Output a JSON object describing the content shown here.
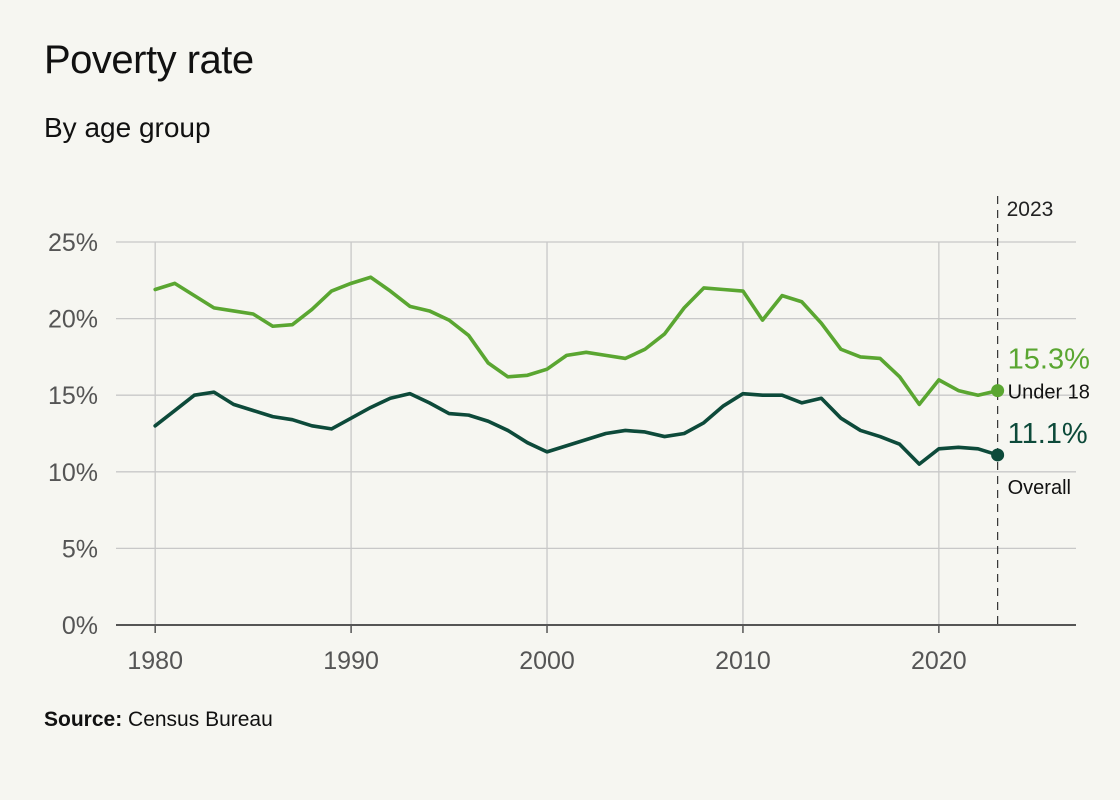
{
  "header": {
    "title": "Poverty rate",
    "subtitle": "By age group"
  },
  "footer": {
    "source_label": "Source:",
    "source_text": "Census Bureau"
  },
  "colors": {
    "background": "#f6f6f1",
    "under18": "#5aa631",
    "overall": "#0d4a3a",
    "grid": "#c8c8c8",
    "axis": "#555555",
    "tick_text": "#555555"
  },
  "chart_data": {
    "type": "line",
    "title": "Poverty rate",
    "subtitle": "By age group",
    "xlim": [
      1978,
      2027
    ],
    "ylim": [
      0,
      25
    ],
    "x_ticks": [
      1980,
      1990,
      2000,
      2010,
      2020
    ],
    "x_tick_labels": [
      "1980",
      "1990",
      "2000",
      "2010",
      "2020"
    ],
    "y_ticks": [
      0,
      5,
      10,
      15,
      20,
      25
    ],
    "y_tick_labels": [
      "0%",
      "5%",
      "10%",
      "15%",
      "20%",
      "25%"
    ],
    "grid": true,
    "reference_line": {
      "x": 2023,
      "label": "2023"
    },
    "x": [
      1980,
      1981,
      1982,
      1983,
      1984,
      1985,
      1986,
      1987,
      1988,
      1989,
      1990,
      1991,
      1992,
      1993,
      1994,
      1995,
      1996,
      1997,
      1998,
      1999,
      2000,
      2001,
      2002,
      2003,
      2004,
      2005,
      2006,
      2007,
      2008,
      2009,
      2010,
      2011,
      2012,
      2013,
      2014,
      2015,
      2016,
      2017,
      2018,
      2019,
      2020,
      2021,
      2022,
      2023
    ],
    "series": [
      {
        "name": "Under 18",
        "end_value_label": "15.3%",
        "values": [
          21.9,
          22.3,
          21.5,
          20.7,
          20.5,
          20.3,
          19.5,
          19.6,
          20.6,
          21.8,
          22.3,
          22.7,
          21.8,
          20.8,
          20.5,
          19.9,
          18.9,
          17.1,
          16.2,
          16.3,
          16.7,
          17.6,
          17.8,
          17.6,
          17.4,
          18.0,
          19.0,
          20.7,
          22.0,
          21.9,
          21.8,
          19.9,
          21.5,
          21.1,
          19.7,
          18.0,
          17.5,
          17.4,
          16.2,
          14.4,
          16.0,
          15.3,
          15.0,
          15.3
        ]
      },
      {
        "name": "Overall",
        "end_value_label": "11.1%",
        "values": [
          13.0,
          14.0,
          15.0,
          15.2,
          14.4,
          14.0,
          13.6,
          13.4,
          13.0,
          12.8,
          13.5,
          14.2,
          14.8,
          15.1,
          14.5,
          13.8,
          13.7,
          13.3,
          12.7,
          11.9,
          11.3,
          11.7,
          12.1,
          12.5,
          12.7,
          12.6,
          12.3,
          12.5,
          13.2,
          14.3,
          15.1,
          15.0,
          15.0,
          14.5,
          14.8,
          13.5,
          12.7,
          12.3,
          11.8,
          10.5,
          11.5,
          11.6,
          11.5,
          11.1
        ]
      }
    ]
  }
}
